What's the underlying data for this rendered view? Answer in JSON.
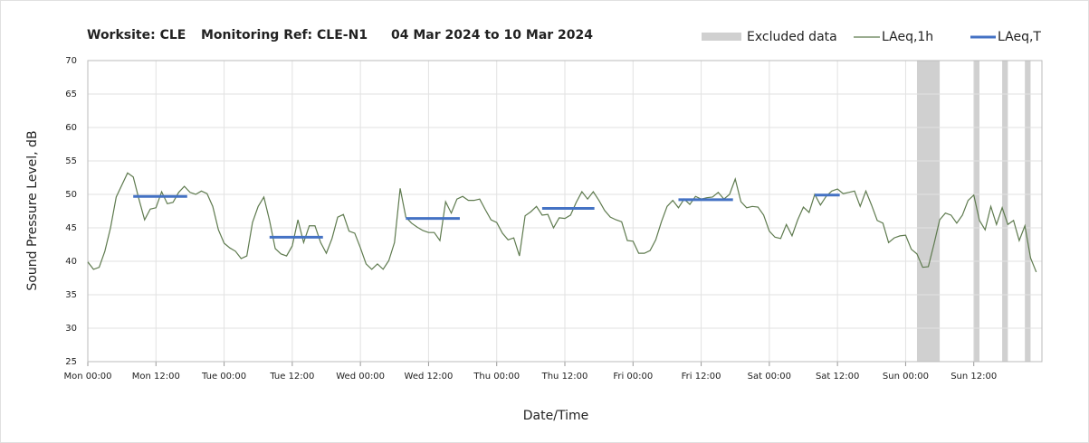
{
  "chart_data": {
    "type": "line",
    "title_parts": [
      "Worksite: CLE",
      "Monitoring Ref: CLE-N1",
      "04 Mar 2024 to 10 Mar 2024"
    ],
    "x_label": "Date/Time",
    "y_label": "Sound Pressure Level, dB",
    "xlim": [
      0,
      168
    ],
    "xticks": [
      {
        "value": 0,
        "label": "Mon 00:00"
      },
      {
        "value": 12,
        "label": "Mon 12:00"
      },
      {
        "value": 24,
        "label": "Tue 00:00"
      },
      {
        "value": 36,
        "label": "Tue 12:00"
      },
      {
        "value": 48,
        "label": "Wed 00:00"
      },
      {
        "value": 60,
        "label": "Wed 12:00"
      },
      {
        "value": 72,
        "label": "Thu 00:00"
      },
      {
        "value": 84,
        "label": "Thu 12:00"
      },
      {
        "value": 96,
        "label": "Fri 00:00"
      },
      {
        "value": 108,
        "label": "Fri 12:00"
      },
      {
        "value": 120,
        "label": "Sat 00:00"
      },
      {
        "value": 132,
        "label": "Sat 12:00"
      },
      {
        "value": 144,
        "label": "Sun 00:00"
      },
      {
        "value": 156,
        "label": "Sun 12:00"
      }
    ],
    "ylim": [
      25,
      70
    ],
    "yticks": [
      25,
      30,
      35,
      40,
      45,
      50,
      55,
      60,
      65,
      70
    ],
    "grid": true,
    "excluded": {
      "name": "Excluded data",
      "color": "#d0d0d0",
      "ranges": [
        [
          146,
          150
        ],
        [
          156,
          157
        ],
        [
          161,
          162
        ],
        [
          165,
          166
        ]
      ]
    },
    "series": [
      {
        "name": "LAeq,1h",
        "color": "#5e7a4e",
        "x": [
          0,
          1,
          2,
          3,
          4,
          5,
          6,
          7,
          8,
          9,
          10,
          11,
          12,
          13,
          14,
          15,
          16,
          17,
          18,
          19,
          20,
          21,
          22,
          23,
          24,
          25,
          26,
          27,
          28,
          29,
          30,
          31,
          32,
          33,
          34,
          35,
          36,
          37,
          38,
          39,
          40,
          41,
          42,
          43,
          44,
          45,
          46,
          47,
          48,
          49,
          50,
          51,
          52,
          53,
          54,
          55,
          56,
          57,
          58,
          59,
          60,
          61,
          62,
          63,
          64,
          65,
          66,
          67,
          68,
          69,
          70,
          71,
          72,
          73,
          74,
          75,
          76,
          77,
          78,
          79,
          80,
          81,
          82,
          83,
          84,
          85,
          86,
          87,
          88,
          89,
          90,
          91,
          92,
          93,
          94,
          95,
          96,
          97,
          98,
          99,
          100,
          101,
          102,
          103,
          104,
          105,
          106,
          107,
          108,
          109,
          110,
          111,
          112,
          113,
          114,
          115,
          116,
          117,
          118,
          119,
          120,
          121,
          122,
          123,
          124,
          125,
          126,
          127,
          128,
          129,
          130,
          131,
          132,
          133,
          134,
          135,
          136,
          137,
          138,
          139,
          140,
          141,
          142,
          143,
          144,
          145,
          146,
          147,
          148,
          149,
          150,
          151,
          152,
          153,
          154,
          155,
          156,
          157,
          158,
          159,
          160,
          161,
          162,
          163,
          164,
          165,
          166,
          167
        ],
        "values": [
          39.9,
          38.8,
          39.1,
          41.5,
          45,
          49.6,
          51.4,
          53.2,
          52.6,
          49.3,
          46.2,
          47.8,
          48,
          50.4,
          48.6,
          48.8,
          50.3,
          51.2,
          50.3,
          50,
          50.5,
          50.1,
          48.2,
          44.7,
          42.7,
          42,
          41.5,
          40.4,
          40.8,
          45.8,
          48.2,
          49.6,
          46.1,
          41.9,
          41.1,
          40.8,
          42.3,
          46.2,
          42.8,
          45.3,
          45.3,
          42.8,
          41.2,
          43.4,
          46.6,
          47,
          44.5,
          44.2,
          42,
          39.6,
          38.8,
          39.6,
          38.8,
          40.1,
          42.8,
          50.9,
          46.6,
          45.7,
          45.1,
          44.6,
          44.3,
          44.3,
          43.1,
          48.9,
          47.2,
          49.3,
          49.7,
          49.1,
          49.1,
          49.3,
          47.7,
          46.2,
          45.8,
          44.2,
          43.2,
          43.5,
          40.8,
          46.8,
          47.4,
          48.2,
          46.9,
          47,
          45,
          46.5,
          46.4,
          46.9,
          48.8,
          50.4,
          49.3,
          50.4,
          49.1,
          47.6,
          46.6,
          46.2,
          45.9,
          43.1,
          43,
          41.2,
          41.2,
          41.6,
          43.2,
          45.9,
          48.2,
          49.1,
          48,
          49.3,
          48.5,
          49.7,
          49.3,
          49.5,
          49.6,
          50.3,
          49.3,
          50,
          52.3,
          48.9,
          48,
          48.2,
          48.1,
          46.9,
          44.5,
          43.6,
          43.4,
          45.5,
          43.8,
          46.2,
          48.1,
          47.3,
          50,
          48.4,
          49.7,
          50.5,
          50.8,
          50.1,
          50.3,
          50.5,
          48.2,
          50.5,
          48.4,
          46.1,
          45.7,
          42.8,
          43.5,
          43.8,
          43.9,
          41.8,
          41.1,
          39.1,
          39.2,
          42.6,
          46.2,
          47.2,
          46.9,
          45.7,
          46.9,
          49.1,
          49.9,
          46.1,
          44.7,
          48.2,
          45.5,
          48,
          45.5,
          46.1,
          43.1,
          45.3,
          40.5,
          38.4
        ]
      }
    ],
    "periods": {
      "name": "LAeq,T",
      "color": "#4472c4",
      "segments": [
        {
          "start": 8,
          "end": 17.5,
          "value": 49.7
        },
        {
          "start": 32,
          "end": 41.4,
          "value": 43.6
        },
        {
          "start": 56,
          "end": 65.5,
          "value": 46.4
        },
        {
          "start": 80,
          "end": 89.2,
          "value": 47.9
        },
        {
          "start": 104,
          "end": 113.6,
          "value": 49.2
        },
        {
          "start": 128,
          "end": 132.4,
          "value": 49.9
        }
      ]
    }
  }
}
